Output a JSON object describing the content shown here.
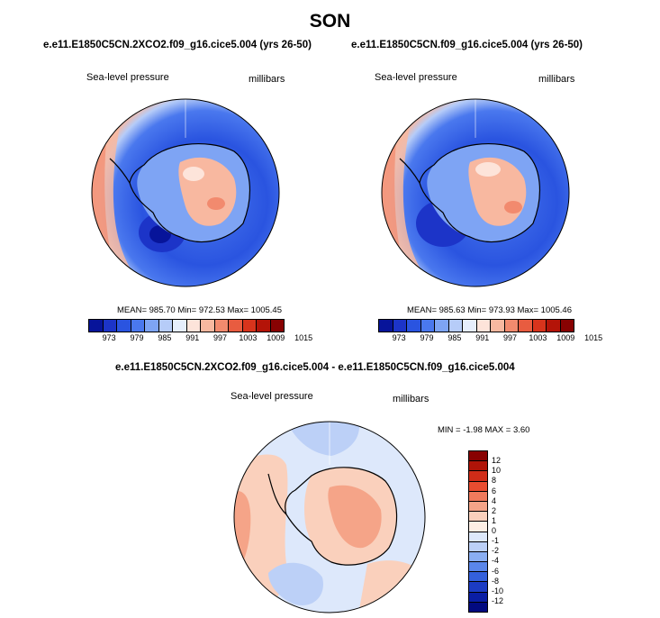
{
  "season": "SON",
  "panels": [
    {
      "title": "e.e11.E1850C5CN.2XCO2.f09_g16.cice5.004 (yrs 26-50)",
      "left_label": "Sea-level pressure",
      "right_label": "millibars",
      "stats": "MEAN= 985.70  Min= 972.53  Max= 1005.45"
    },
    {
      "title": "e.e11.E1850C5CN.f09_g16.cice5.004 (yrs 26-50)",
      "left_label": "Sea-level pressure",
      "right_label": "millibars",
      "stats": "MEAN= 985.63  Min= 973.93  Max= 1005.46"
    }
  ],
  "diff_panel": {
    "title": "e.e11.E1850C5CN.2XCO2.f09_g16.cice5.004 - e.e11.E1850C5CN.f09_g16.cice5.004",
    "left_label": "Sea-level pressure",
    "right_label": "millibars",
    "stats": "MIN =  -1.98 MAX =   3.60"
  },
  "colorbar_abs": {
    "labels": [
      "973",
      "979",
      "985",
      "991",
      "997",
      "1003",
      "1009",
      "1015"
    ],
    "colors": [
      "#07149a",
      "#1c34c8",
      "#2a54e0",
      "#4a78ee",
      "#7ea4f4",
      "#b6ccf8",
      "#e6eefc",
      "#fde4da",
      "#f8b8a0",
      "#f28a6e",
      "#e85c40",
      "#d8341c",
      "#b41408",
      "#880202"
    ]
  },
  "colorbar_diff": {
    "labels": [
      "12",
      "10",
      "8",
      "6",
      "4",
      "2",
      "1",
      "0",
      "-1",
      "-2",
      "-4",
      "-6",
      "-8",
      "-10",
      "-12"
    ],
    "colors": [
      "#880202",
      "#b01408",
      "#d02c18",
      "#e84c30",
      "#f07a5c",
      "#f5a488",
      "#fad0bc",
      "#fdeee4",
      "#dde8fb",
      "#bcd0f7",
      "#8aaef2",
      "#5a86ea",
      "#3460dc",
      "#1c3cc4",
      "#0a1ea4",
      "#020a80"
    ]
  },
  "chart_data": {
    "type": "heatmap",
    "title": "SON",
    "variable": "Sea-level pressure",
    "units": "millibars",
    "maps": [
      {
        "case": "e.e11.E1850C5CN.2XCO2.f09_g16.cice5.004 (yrs 26-50)",
        "mean": 985.7,
        "min": 972.53,
        "max": 1005.45,
        "levels": [
          973,
          979,
          985,
          991,
          997,
          1003,
          1009,
          1015
        ]
      },
      {
        "case": "e.e11.E1850C5CN.f09_g16.cice5.004 (yrs 26-50)",
        "mean": 985.63,
        "min": 973.93,
        "max": 1005.46,
        "levels": [
          973,
          979,
          985,
          991,
          997,
          1003,
          1009,
          1015
        ]
      },
      {
        "case": "difference",
        "min": -1.98,
        "max": 3.6,
        "levels": [
          -12,
          -10,
          -8,
          -6,
          -4,
          -2,
          -1,
          0,
          1,
          2,
          4,
          6,
          8,
          10,
          12
        ]
      }
    ]
  }
}
